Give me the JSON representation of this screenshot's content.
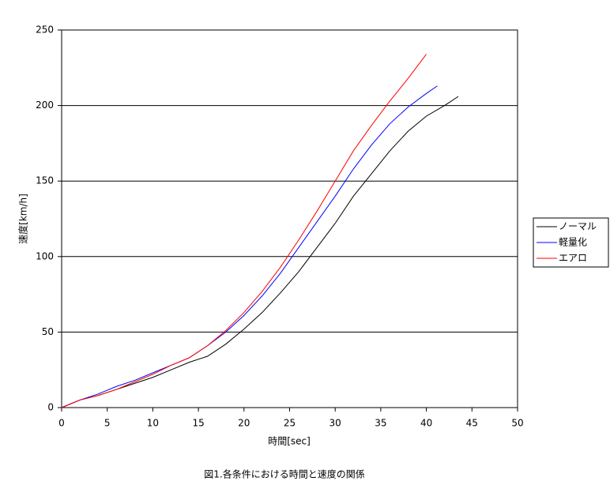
{
  "chart_data": {
    "type": "line",
    "title": "図1.各条件における時間と速度の関係",
    "x_label": "時間[sec]",
    "y_label": "速度[km/h]",
    "xlim": [
      0,
      50
    ],
    "xticks": [
      0,
      5,
      10,
      15,
      20,
      25,
      30,
      35,
      40,
      45,
      50
    ],
    "ylim": [
      0,
      250
    ],
    "yticks": [
      0,
      50,
      100,
      150,
      200,
      250
    ],
    "grid": true,
    "legend": "right",
    "series": [
      {
        "name": "ノーマル",
        "color": "#000000",
        "x": [
          0,
          2,
          4,
          6,
          8,
          10,
          12,
          14,
          16,
          18,
          20,
          22,
          24,
          26,
          28,
          30,
          32,
          34,
          36,
          38,
          40,
          42,
          43.5
        ],
        "values": [
          0,
          5,
          8,
          12,
          16,
          20,
          25,
          30,
          34,
          42,
          52,
          63,
          76,
          90,
          106,
          122,
          140,
          155,
          170,
          183,
          193,
          200,
          206
        ]
      },
      {
        "name": "軽量化",
        "color": "#0000ff",
        "x": [
          0,
          2,
          4,
          6,
          8,
          10,
          12,
          14,
          16,
          18,
          20,
          22,
          24,
          26,
          28,
          30,
          32,
          34,
          36,
          38,
          40,
          41.2
        ],
        "values": [
          0,
          5,
          9,
          14,
          18,
          23,
          28,
          33,
          41,
          50,
          61,
          74,
          89,
          106,
          123,
          140,
          158,
          174,
          188,
          199,
          208,
          213
        ]
      },
      {
        "name": "エアロ",
        "color": "#ff0000",
        "x": [
          0,
          2,
          4,
          6,
          8,
          10,
          12,
          14,
          16,
          18,
          20,
          22,
          24,
          26,
          28,
          30,
          32,
          34,
          36,
          38,
          40
        ],
        "values": [
          0,
          5,
          8,
          12,
          17,
          22,
          28,
          33,
          41,
          51,
          63,
          77,
          93,
          111,
          130,
          150,
          170,
          187,
          203,
          218,
          234
        ]
      }
    ]
  }
}
